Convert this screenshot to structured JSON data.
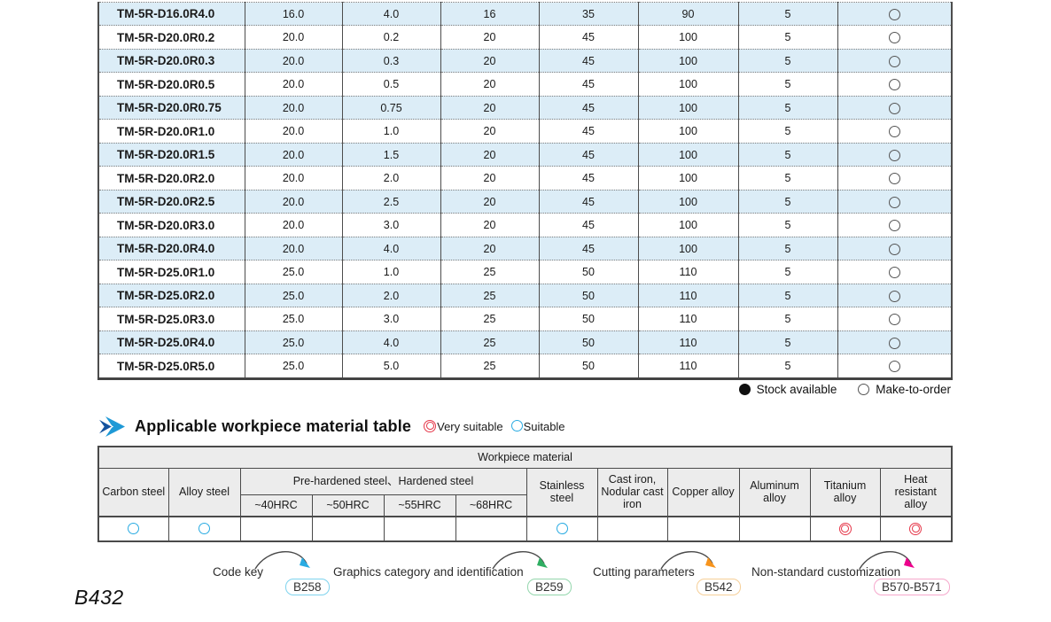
{
  "size_table": {
    "rows": [
      {
        "model": "TM-5R-D16.0R4.0",
        "values": [
          "16.0",
          "4.0",
          "16",
          "35",
          "90",
          "5"
        ],
        "stock": "make-to-order"
      },
      {
        "model": "TM-5R-D20.0R0.2",
        "values": [
          "20.0",
          "0.2",
          "20",
          "45",
          "100",
          "5"
        ],
        "stock": "make-to-order"
      },
      {
        "model": "TM-5R-D20.0R0.3",
        "values": [
          "20.0",
          "0.3",
          "20",
          "45",
          "100",
          "5"
        ],
        "stock": "make-to-order"
      },
      {
        "model": "TM-5R-D20.0R0.5",
        "values": [
          "20.0",
          "0.5",
          "20",
          "45",
          "100",
          "5"
        ],
        "stock": "make-to-order"
      },
      {
        "model": "TM-5R-D20.0R0.75",
        "values": [
          "20.0",
          "0.75",
          "20",
          "45",
          "100",
          "5"
        ],
        "stock": "make-to-order"
      },
      {
        "model": "TM-5R-D20.0R1.0",
        "values": [
          "20.0",
          "1.0",
          "20",
          "45",
          "100",
          "5"
        ],
        "stock": "make-to-order"
      },
      {
        "model": "TM-5R-D20.0R1.5",
        "values": [
          "20.0",
          "1.5",
          "20",
          "45",
          "100",
          "5"
        ],
        "stock": "make-to-order"
      },
      {
        "model": "TM-5R-D20.0R2.0",
        "values": [
          "20.0",
          "2.0",
          "20",
          "45",
          "100",
          "5"
        ],
        "stock": "make-to-order"
      },
      {
        "model": "TM-5R-D20.0R2.5",
        "values": [
          "20.0",
          "2.5",
          "20",
          "45",
          "100",
          "5"
        ],
        "stock": "make-to-order"
      },
      {
        "model": "TM-5R-D20.0R3.0",
        "values": [
          "20.0",
          "3.0",
          "20",
          "45",
          "100",
          "5"
        ],
        "stock": "make-to-order"
      },
      {
        "model": "TM-5R-D20.0R4.0",
        "values": [
          "20.0",
          "4.0",
          "20",
          "45",
          "100",
          "5"
        ],
        "stock": "make-to-order"
      },
      {
        "model": "TM-5R-D25.0R1.0",
        "values": [
          "25.0",
          "1.0",
          "25",
          "50",
          "110",
          "5"
        ],
        "stock": "make-to-order"
      },
      {
        "model": "TM-5R-D25.0R2.0",
        "values": [
          "25.0",
          "2.0",
          "25",
          "50",
          "110",
          "5"
        ],
        "stock": "make-to-order"
      },
      {
        "model": "TM-5R-D25.0R3.0",
        "values": [
          "25.0",
          "3.0",
          "25",
          "50",
          "110",
          "5"
        ],
        "stock": "make-to-order"
      },
      {
        "model": "TM-5R-D25.0R4.0",
        "values": [
          "25.0",
          "4.0",
          "25",
          "50",
          "110",
          "5"
        ],
        "stock": "make-to-order"
      },
      {
        "model": "TM-5R-D25.0R5.0",
        "values": [
          "25.0",
          "5.0",
          "25",
          "50",
          "110",
          "5"
        ],
        "stock": "make-to-order"
      }
    ],
    "legend": {
      "stock_available": "Stock available",
      "make_to_order": "Make-to-order"
    }
  },
  "material_section": {
    "title": "Applicable workpiece material table",
    "legend": {
      "very_suitable": "Very suitable",
      "suitable": "Suitable"
    },
    "table": {
      "span_header": "Workpiece material",
      "col_carbon": "Carbon steel",
      "col_alloy": "Alloy steel",
      "group_label": "Pre-hardened steel、Hardened steel",
      "group_cols": [
        "~40HRC",
        "~50HRC",
        "~55HRC",
        "~68HRC"
      ],
      "col_stainless": "Stainless steel",
      "col_cast_iron": "Cast iron, Nodular cast iron",
      "col_copper": "Copper alloy",
      "col_aluminum": "Aluminum alloy",
      "col_titanium": "Titanium alloy",
      "col_heat": "Heat resistant alloy",
      "ratings": [
        "suitable",
        "suitable",
        "",
        "",
        "",
        "",
        "suitable",
        "",
        "",
        "",
        "very-suitable",
        "very-suitable"
      ]
    }
  },
  "footer_links": [
    {
      "label": "Code key",
      "ref": "B258",
      "badge_color": "#7ed3ee",
      "arrow_color": "#29abe2"
    },
    {
      "label": "Graphics category and identification",
      "ref": "B259",
      "badge_color": "#93d6ac",
      "arrow_color": "#2fae62"
    },
    {
      "label": "Cutting parameters",
      "ref": "B542",
      "badge_color": "#f6cf98",
      "arrow_color": "#f7941d"
    },
    {
      "label": "Non-standard customization",
      "ref": "B570-B571",
      "badge_color": "#f6a8cc",
      "arrow_color": "#ec008c"
    }
  ],
  "page_label": "B432",
  "colors": {
    "row_alt": "#dcedf7",
    "band": "#c7e8f2",
    "header_bg": "#ececec",
    "suitable": "#29abe2",
    "very_suitable": "#e5384a"
  }
}
